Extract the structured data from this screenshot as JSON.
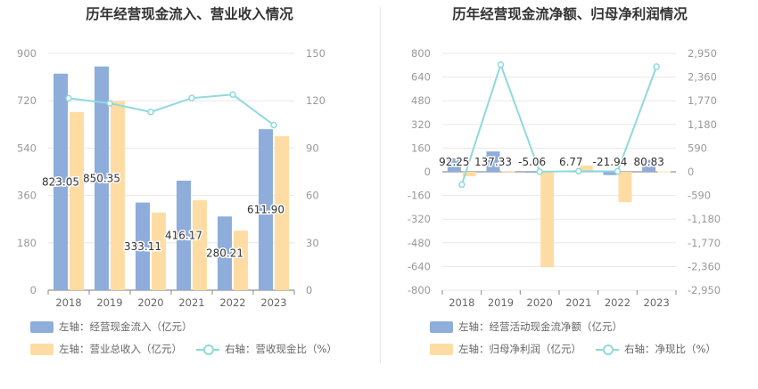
{
  "colors": {
    "blue": "#8eaddb",
    "yellow": "#ffdca3",
    "line": "#8fd9dd",
    "axis_text": "#999999",
    "label_text": "#333333"
  },
  "chart_data": [
    {
      "type": "bar",
      "title": "历年经营现金流入、营业收入情况",
      "categories": [
        "2018",
        "2019",
        "2020",
        "2021",
        "2022",
        "2023"
      ],
      "y_left": {
        "ticks": [
          "900",
          "720",
          "540",
          "360",
          "180",
          "0"
        ],
        "ylim": [
          0,
          900
        ]
      },
      "y_right": {
        "ticks": [
          "150",
          "120",
          "90",
          "60",
          "30",
          "0"
        ],
        "ylim": [
          0,
          150
        ]
      },
      "series": [
        {
          "name": "左轴：经营现金流入（亿元）",
          "type": "bar",
          "axis": "left",
          "color": "#8eaddb",
          "values": [
            823.05,
            850.35,
            333.11,
            416.17,
            280.21,
            611.9
          ],
          "labels": [
            "823.05",
            "850.35",
            "333.11",
            "416.17",
            "280.21",
            "611.90"
          ]
        },
        {
          "name": "左轴：营业总收入（亿元）",
          "type": "bar",
          "axis": "left",
          "color": "#ffdca3",
          "values": [
            677,
            718,
            295,
            342,
            226,
            585
          ]
        },
        {
          "name": "右轴：营收现金比（%）",
          "type": "line",
          "axis": "right",
          "color": "#8fd9dd",
          "values": [
            121.6,
            118.4,
            112.9,
            121.7,
            123.9,
            104.6
          ]
        }
      ]
    },
    {
      "type": "bar",
      "title": "历年经营现金流净额、归母净利润情况",
      "categories": [
        "2018",
        "2019",
        "2020",
        "2021",
        "2022",
        "2023"
      ],
      "y_left": {
        "ticks": [
          "800",
          "640",
          "480",
          "320",
          "160",
          "0",
          "-160",
          "-320",
          "-480",
          "-640",
          "-800"
        ],
        "ylim": [
          -800,
          800
        ]
      },
      "y_right": {
        "ticks": [
          "2,950",
          "2,360",
          "1,770",
          "1,180",
          "590",
          "0",
          "-590",
          "-1,180",
          "-1,770",
          "-2,360",
          "-2,950"
        ],
        "ylim": [
          -2950,
          2950
        ]
      },
      "series": [
        {
          "name": "左轴：经营活动现金流净额（亿元）",
          "type": "bar",
          "axis": "left",
          "color": "#8eaddb",
          "values": [
            92.25,
            137.33,
            -5.06,
            6.77,
            -21.94,
            80.83
          ],
          "labels": [
            "92.25",
            "137.33",
            "-5.06",
            "6.77",
            "-21.94",
            "80.83"
          ]
        },
        {
          "name": "左轴：归母净利润（亿元）",
          "type": "bar",
          "axis": "left",
          "color": "#ffdca3",
          "values": [
            -30,
            4.5,
            -645,
            42,
            -205,
            3
          ]
        },
        {
          "name": "右轴：净现比（%）",
          "type": "line",
          "axis": "right",
          "color": "#8fd9dd",
          "values": [
            -320,
            2670,
            2,
            16,
            11,
            2620
          ]
        }
      ]
    }
  ]
}
